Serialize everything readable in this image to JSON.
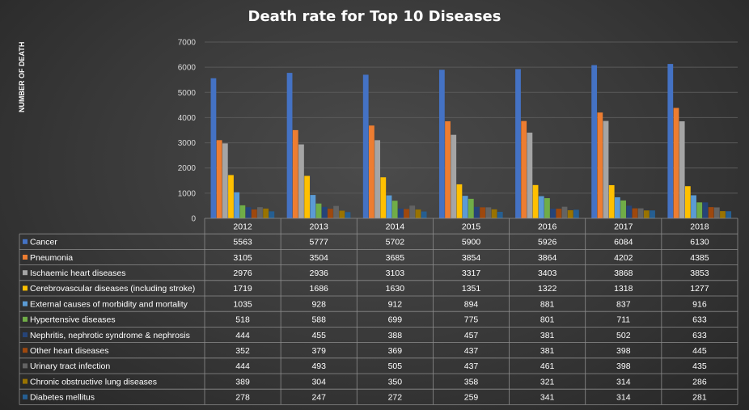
{
  "chart_data": {
    "type": "bar",
    "title": "Death rate for Top 10 Diseases",
    "xlabel": "",
    "ylabel": "NUMBER OF DEATH",
    "ylim": [
      0,
      7000
    ],
    "yticks": [
      0,
      1000,
      2000,
      3000,
      4000,
      5000,
      6000,
      7000
    ],
    "grid": true,
    "legend": "in data table",
    "categories": [
      "2012",
      "2013",
      "2014",
      "2015",
      "2016",
      "2017",
      "2018"
    ],
    "series": [
      {
        "name": "Cancer",
        "color": "#4472C4",
        "values": [
          5563,
          5777,
          5702,
          5900,
          5926,
          6084,
          6130
        ]
      },
      {
        "name": "Pneumonia",
        "color": "#ED7D31",
        "values": [
          3105,
          3504,
          3685,
          3854,
          3864,
          4202,
          4385
        ]
      },
      {
        "name": "Ischaemic heart diseases",
        "color": "#A5A5A5",
        "values": [
          2976,
          2936,
          3103,
          3317,
          3403,
          3868,
          3853
        ]
      },
      {
        "name": "Cerebrovascular diseases (including stroke)",
        "color": "#FFC000",
        "values": [
          1719,
          1686,
          1630,
          1351,
          1322,
          1318,
          1277
        ]
      },
      {
        "name": "External causes of morbidity and mortality",
        "color": "#5B9BD5",
        "values": [
          1035,
          928,
          912,
          894,
          881,
          837,
          916
        ]
      },
      {
        "name": "Hypertensive diseases",
        "color": "#70AD47",
        "values": [
          518,
          588,
          699,
          775,
          801,
          711,
          633
        ]
      },
      {
        "name": "Nephritis, nephrotic syndrome & nephrosis",
        "color": "#264478",
        "values": [
          444,
          455,
          388,
          457,
          381,
          502,
          633
        ]
      },
      {
        "name": "Other heart diseases",
        "color": "#9E480E",
        "values": [
          352,
          379,
          369,
          437,
          381,
          398,
          445
        ]
      },
      {
        "name": "Urinary tract infection",
        "color": "#636363",
        "values": [
          444,
          493,
          505,
          437,
          461,
          398,
          435
        ]
      },
      {
        "name": "Chronic obstructive lung diseases",
        "color": "#997300",
        "values": [
          389,
          304,
          350,
          358,
          321,
          314,
          286
        ]
      },
      {
        "name": "Diabetes mellitus",
        "color": "#255E91",
        "values": [
          278,
          247,
          272,
          259,
          341,
          314,
          281
        ]
      }
    ]
  }
}
